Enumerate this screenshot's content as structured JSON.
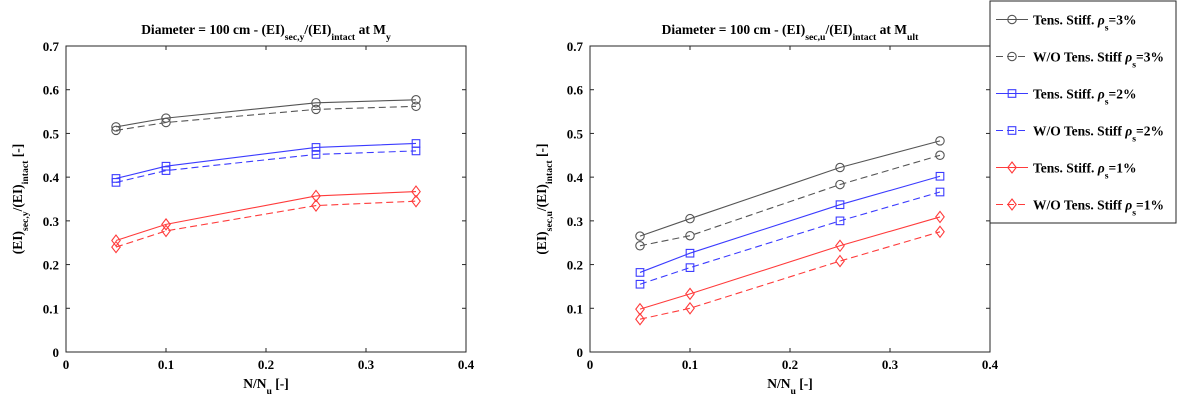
{
  "chart_data": [
    {
      "type": "line",
      "title": "Diameter = 100 cm - (EI)",
      "title_parts": [
        "Diameter = 100 cm - (EI)",
        "sec,y",
        "/(EI)",
        "intact",
        " at M",
        "y"
      ],
      "xlabel_parts": [
        "N/N",
        "u",
        " [-]"
      ],
      "ylabel_parts": [
        "(EI)",
        "sec,y",
        "/(EI)",
        "intact",
        " [-]"
      ],
      "xlim": [
        0,
        0.4
      ],
      "ylim": [
        0,
        0.7
      ],
      "xticks": [
        "0",
        "0.1",
        "0.2",
        "0.3",
        "0.4"
      ],
      "yticks": [
        "0",
        "0.1",
        "0.2",
        "0.3",
        "0.4",
        "0.5",
        "0.6",
        "0.7"
      ],
      "grid": false,
      "x": [
        0.05,
        0.1,
        0.25,
        0.35
      ],
      "series": [
        {
          "name": "Tens. Stiff. ρs=3%",
          "color": "#555555",
          "dash": false,
          "marker": "circle",
          "values": [
            0.515,
            0.535,
            0.57,
            0.577
          ]
        },
        {
          "name": "W/O Tens. Stiff ρs=3%",
          "color": "#555555",
          "dash": true,
          "marker": "circle",
          "values": [
            0.507,
            0.525,
            0.555,
            0.562
          ]
        },
        {
          "name": "Tens. Stiff. ρs=2%",
          "color": "#3b3bff",
          "dash": false,
          "marker": "square",
          "values": [
            0.397,
            0.425,
            0.468,
            0.477
          ]
        },
        {
          "name": "W/O Tens. Stiff ρs=2%",
          "color": "#3b3bff",
          "dash": true,
          "marker": "square",
          "values": [
            0.388,
            0.415,
            0.452,
            0.46
          ]
        },
        {
          "name": "Tens. Stiff. ρs=1%",
          "color": "#ff3b3b",
          "dash": false,
          "marker": "diamond",
          "values": [
            0.255,
            0.292,
            0.357,
            0.367
          ]
        },
        {
          "name": "W/O Tens. Stiff ρs=1%",
          "color": "#ff3b3b",
          "dash": true,
          "marker": "diamond",
          "values": [
            0.24,
            0.277,
            0.335,
            0.345
          ]
        }
      ]
    },
    {
      "type": "line",
      "title": "Diameter = 100 cm - (EI)",
      "title_parts": [
        "Diameter = 100 cm - (EI)",
        "sec,u",
        "/(EI)",
        "intact",
        " at M",
        "ult"
      ],
      "xlabel_parts": [
        "N/N",
        "u",
        " [-]"
      ],
      "ylabel_parts": [
        "(EI)",
        "sec,u",
        "/(EI)",
        "intact",
        " [-]"
      ],
      "xlim": [
        0,
        0.4
      ],
      "ylim": [
        0,
        0.7
      ],
      "xticks": [
        "0",
        "0.1",
        "0.2",
        "0.3",
        "0.4"
      ],
      "yticks": [
        "0",
        "0.1",
        "0.2",
        "0.3",
        "0.4",
        "0.5",
        "0.6",
        "0.7"
      ],
      "grid": false,
      "legend_position": "top-right",
      "x": [
        0.05,
        0.1,
        0.25,
        0.35
      ],
      "series": [
        {
          "name": "Tens. Stiff. ρs=3%",
          "color": "#555555",
          "dash": false,
          "marker": "circle",
          "values": [
            0.265,
            0.305,
            0.422,
            0.483
          ]
        },
        {
          "name": "W/O Tens. Stiff ρs=3%",
          "color": "#555555",
          "dash": true,
          "marker": "circle",
          "values": [
            0.243,
            0.266,
            0.383,
            0.45
          ]
        },
        {
          "name": "Tens. Stiff. ρs=2%",
          "color": "#3b3bff",
          "dash": false,
          "marker": "square",
          "values": [
            0.182,
            0.226,
            0.337,
            0.402
          ]
        },
        {
          "name": "W/O Tens. Stiff ρs=2%",
          "color": "#3b3bff",
          "dash": true,
          "marker": "square",
          "values": [
            0.155,
            0.193,
            0.3,
            0.366
          ]
        },
        {
          "name": "Tens. Stiff. ρs=1%",
          "color": "#ff3b3b",
          "dash": false,
          "marker": "diamond",
          "values": [
            0.098,
            0.133,
            0.243,
            0.309
          ]
        },
        {
          "name": "W/O Tens. Stiff ρs=1%",
          "color": "#ff3b3b",
          "dash": true,
          "marker": "diamond",
          "values": [
            0.075,
            0.1,
            0.208,
            0.275
          ]
        }
      ]
    }
  ],
  "legend": {
    "position": "top-right",
    "items": [
      {
        "prefix": "Tens. Stiff. ",
        "sym": "ρ",
        "sub": "s",
        "suffix": "=3%",
        "color": "#555555",
        "dash": false,
        "marker": "circle"
      },
      {
        "prefix": "W/O Tens. Stiff ",
        "sym": "ρ",
        "sub": "s",
        "suffix": "=3%",
        "color": "#555555",
        "dash": true,
        "marker": "circle"
      },
      {
        "prefix": "Tens. Stiff. ",
        "sym": "ρ",
        "sub": "s",
        "suffix": "=2%",
        "color": "#3b3bff",
        "dash": false,
        "marker": "square"
      },
      {
        "prefix": "W/O Tens. Stiff ",
        "sym": "ρ",
        "sub": "s",
        "suffix": "=2%",
        "color": "#3b3bff",
        "dash": true,
        "marker": "square"
      },
      {
        "prefix": "Tens. Stiff. ",
        "sym": "ρ",
        "sub": "s",
        "suffix": "=1%",
        "color": "#ff3b3b",
        "dash": false,
        "marker": "diamond"
      },
      {
        "prefix": "W/O Tens. Stiff ",
        "sym": "ρ",
        "sub": "s",
        "suffix": "=1%",
        "color": "#ff3b3b",
        "dash": true,
        "marker": "diamond"
      }
    ]
  }
}
